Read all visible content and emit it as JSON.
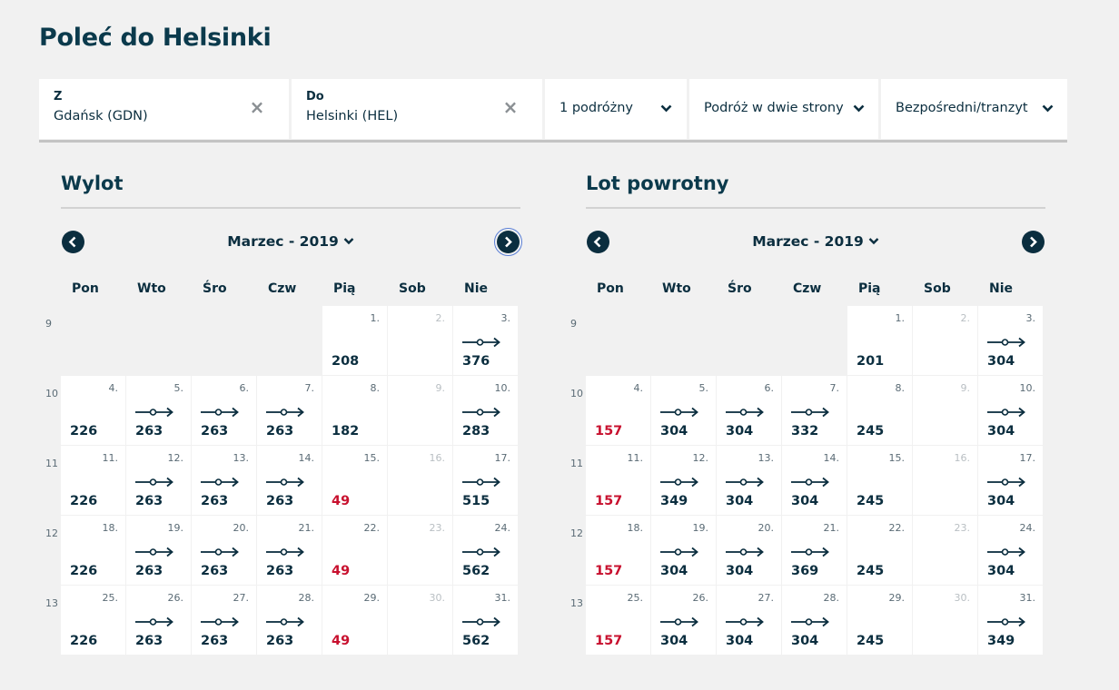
{
  "page": {
    "title": "Poleć do Helsinki"
  },
  "search": {
    "from_label": "Z",
    "from_value": "Gdańsk (GDN)",
    "to_label": "Do",
    "to_value": "Helsinki (HEL)",
    "passengers": "1 podróżny",
    "trip_type": "Podróż w dwie strony",
    "connection": "Bezpośredni/tranzyt"
  },
  "calendars": [
    {
      "title": "Wylot",
      "month": "Marzec - 2019",
      "weekdays": [
        "Pon",
        "Wto",
        "Śro",
        "Czw",
        "Pią",
        "Sob",
        "Nie"
      ],
      "weeks": [
        {
          "num": "9",
          "days": [
            null,
            null,
            null,
            null,
            {
              "d": "1.",
              "p": "208",
              "stop": false
            },
            {
              "d": "2.",
              "p": "",
              "muted": true
            },
            {
              "d": "3.",
              "p": "376",
              "stop": true
            }
          ]
        },
        {
          "num": "10",
          "days": [
            {
              "d": "4.",
              "p": "226",
              "stop": false
            },
            {
              "d": "5.",
              "p": "263",
              "stop": true
            },
            {
              "d": "6.",
              "p": "263",
              "stop": true
            },
            {
              "d": "7.",
              "p": "263",
              "stop": true
            },
            {
              "d": "8.",
              "p": "182",
              "stop": false
            },
            {
              "d": "9.",
              "p": "",
              "muted": true
            },
            {
              "d": "10.",
              "p": "283",
              "stop": true
            }
          ]
        },
        {
          "num": "11",
          "days": [
            {
              "d": "11.",
              "p": "226",
              "stop": false
            },
            {
              "d": "12.",
              "p": "263",
              "stop": true
            },
            {
              "d": "13.",
              "p": "263",
              "stop": true
            },
            {
              "d": "14.",
              "p": "263",
              "stop": true
            },
            {
              "d": "15.",
              "p": "49",
              "stop": false,
              "low": true
            },
            {
              "d": "16.",
              "p": "",
              "muted": true
            },
            {
              "d": "17.",
              "p": "515",
              "stop": true
            }
          ]
        },
        {
          "num": "12",
          "days": [
            {
              "d": "18.",
              "p": "226",
              "stop": false
            },
            {
              "d": "19.",
              "p": "263",
              "stop": true
            },
            {
              "d": "20.",
              "p": "263",
              "stop": true
            },
            {
              "d": "21.",
              "p": "263",
              "stop": true
            },
            {
              "d": "22.",
              "p": "49",
              "stop": false,
              "low": true
            },
            {
              "d": "23.",
              "p": "",
              "muted": true
            },
            {
              "d": "24.",
              "p": "562",
              "stop": true
            }
          ]
        },
        {
          "num": "13",
          "days": [
            {
              "d": "25.",
              "p": "226",
              "stop": false
            },
            {
              "d": "26.",
              "p": "263",
              "stop": true
            },
            {
              "d": "27.",
              "p": "263",
              "stop": true
            },
            {
              "d": "28.",
              "p": "263",
              "stop": true
            },
            {
              "d": "29.",
              "p": "49",
              "stop": false,
              "low": true
            },
            {
              "d": "30.",
              "p": "",
              "muted": true
            },
            {
              "d": "31.",
              "p": "562",
              "stop": true
            }
          ]
        }
      ]
    },
    {
      "title": "Lot powrotny",
      "month": "Marzec - 2019",
      "weekdays": [
        "Pon",
        "Wto",
        "Śro",
        "Czw",
        "Pią",
        "Sob",
        "Nie"
      ],
      "weeks": [
        {
          "num": "9",
          "days": [
            null,
            null,
            null,
            null,
            {
              "d": "1.",
              "p": "201",
              "stop": false
            },
            {
              "d": "2.",
              "p": "",
              "muted": true
            },
            {
              "d": "3.",
              "p": "304",
              "stop": true
            }
          ]
        },
        {
          "num": "10",
          "days": [
            {
              "d": "4.",
              "p": "157",
              "stop": false,
              "low": true
            },
            {
              "d": "5.",
              "p": "304",
              "stop": true
            },
            {
              "d": "6.",
              "p": "304",
              "stop": true
            },
            {
              "d": "7.",
              "p": "332",
              "stop": true
            },
            {
              "d": "8.",
              "p": "245",
              "stop": false
            },
            {
              "d": "9.",
              "p": "",
              "muted": true
            },
            {
              "d": "10.",
              "p": "304",
              "stop": true
            }
          ]
        },
        {
          "num": "11",
          "days": [
            {
              "d": "11.",
              "p": "157",
              "stop": false,
              "low": true
            },
            {
              "d": "12.",
              "p": "349",
              "stop": true
            },
            {
              "d": "13.",
              "p": "304",
              "stop": true
            },
            {
              "d": "14.",
              "p": "304",
              "stop": true
            },
            {
              "d": "15.",
              "p": "245",
              "stop": false
            },
            {
              "d": "16.",
              "p": "",
              "muted": true
            },
            {
              "d": "17.",
              "p": "304",
              "stop": true
            }
          ]
        },
        {
          "num": "12",
          "days": [
            {
              "d": "18.",
              "p": "157",
              "stop": false,
              "low": true
            },
            {
              "d": "19.",
              "p": "304",
              "stop": true
            },
            {
              "d": "20.",
              "p": "304",
              "stop": true
            },
            {
              "d": "21.",
              "p": "369",
              "stop": true
            },
            {
              "d": "22.",
              "p": "245",
              "stop": false
            },
            {
              "d": "23.",
              "p": "",
              "muted": true
            },
            {
              "d": "24.",
              "p": "304",
              "stop": true
            }
          ]
        },
        {
          "num": "13",
          "days": [
            {
              "d": "25.",
              "p": "157",
              "stop": false,
              "low": true
            },
            {
              "d": "26.",
              "p": "304",
              "stop": true
            },
            {
              "d": "27.",
              "p": "304",
              "stop": true
            },
            {
              "d": "28.",
              "p": "304",
              "stop": true
            },
            {
              "d": "29.",
              "p": "245",
              "stop": false
            },
            {
              "d": "30.",
              "p": "",
              "muted": true
            },
            {
              "d": "31.",
              "p": "349",
              "stop": true
            }
          ]
        }
      ]
    }
  ],
  "colors": {
    "primary": "#0b2e3f",
    "low_price": "#c8102e",
    "background": "#f1f1f1"
  },
  "icons": {
    "clear": "close-icon",
    "dropdown": "chevron-down-icon",
    "prev": "chevron-left-icon",
    "next": "chevron-right-icon",
    "stopover": "stopover-arrow-icon"
  }
}
